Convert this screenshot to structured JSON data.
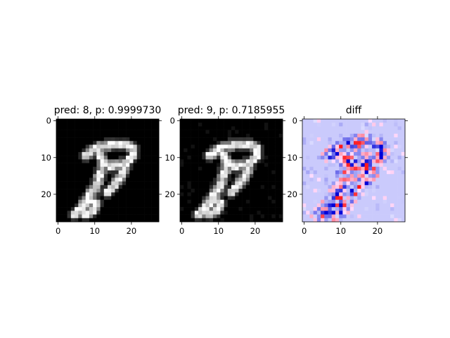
{
  "figure": {
    "background": "#ffffff"
  },
  "chart_data": [
    {
      "type": "heatmap",
      "title": "pred: 8, p: 0.9999730",
      "colormap": "gray",
      "grid_size": [
        28,
        28
      ],
      "xlim": [
        -0.5,
        27.5
      ],
      "ylim": [
        27.5,
        -0.5
      ],
      "xticks": [
        0,
        10,
        20
      ],
      "yticks": [
        0,
        10,
        20
      ],
      "xtick_labels": [
        "0",
        "10",
        "20"
      ],
      "ytick_labels": [
        "0",
        "10",
        "20"
      ]
    },
    {
      "type": "heatmap",
      "title": "pred: 9, p: 0.7185955",
      "colormap": "gray",
      "grid_size": [
        28,
        28
      ],
      "xlim": [
        -0.5,
        27.5
      ],
      "ylim": [
        27.5,
        -0.5
      ],
      "xticks": [
        0,
        10,
        20
      ],
      "yticks": [
        0,
        10,
        20
      ],
      "xtick_labels": [
        "0",
        "10",
        "20"
      ],
      "ytick_labels": [
        "0",
        "10",
        "20"
      ]
    },
    {
      "type": "heatmap",
      "title": "diff",
      "colormap": "bwr",
      "grid_size": [
        28,
        28
      ],
      "xlim": [
        -0.5,
        27.5
      ],
      "ylim": [
        27.5,
        -0.5
      ],
      "xticks": [
        0,
        10,
        20
      ],
      "yticks": [
        0,
        10,
        20
      ],
      "xtick_labels": [
        "0",
        "10",
        "20"
      ],
      "ytick_labels": [
        "0",
        "10",
        "20"
      ]
    }
  ]
}
